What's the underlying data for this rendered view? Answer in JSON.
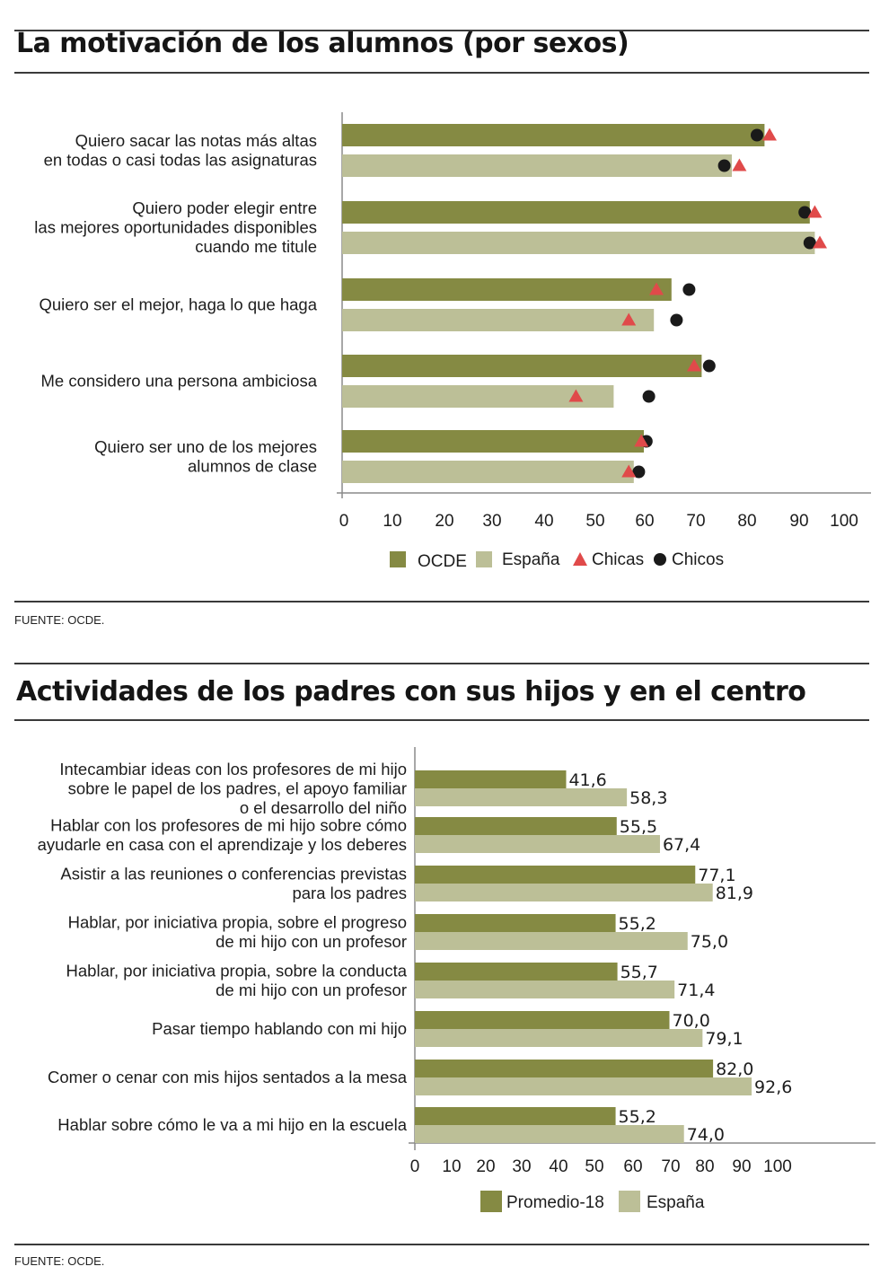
{
  "colors": {
    "primary_bar": "#858a43",
    "secondary_bar": "#bcbf97",
    "chicas": "#e04a4a",
    "chicos": "#1a1a1a",
    "axis": "#8a8a8a"
  },
  "sections": [
    {
      "title": "La motivación de los alumnos (por sexos)",
      "source": "FUENTE: OCDE."
    },
    {
      "title": "Actividades de los padres con sus hijos y en el centro",
      "source": "FUENTE: OCDE."
    }
  ],
  "chart_data": [
    {
      "type": "bar",
      "orientation": "horizontal",
      "title": "La motivación de los alumnos (por sexos)",
      "xlim": [
        0,
        100
      ],
      "xticks": [
        "0",
        "10",
        "20",
        "30",
        "40",
        "50",
        "60",
        "70",
        "80",
        "90",
        "100"
      ],
      "legend_position": "bottom",
      "legend": [
        {
          "label": "OCDE",
          "kind": "bar-dark"
        },
        {
          "label": "España",
          "kind": "bar-light"
        },
        {
          "label": "Chicas",
          "kind": "triangle"
        },
        {
          "label": "Chicos",
          "kind": "circle"
        }
      ],
      "categories": [
        [
          "Quiero sacar las notas  más altas",
          "en todas o casi todas las asignaturas"
        ],
        [
          "Quiero poder elegir entre",
          "las mejores oportunidades disponibles",
          "cuando me titule"
        ],
        [
          "Quiero ser el mejor, haga lo que haga"
        ],
        [
          "Me considero una persona ambiciosa"
        ],
        [
          "Quiero ser uno de los mejores",
          "alumnos de clase"
        ]
      ],
      "series": [
        {
          "name": "OCDE",
          "values": [
            84,
            93,
            65.5,
            71.5,
            60
          ],
          "chicas": [
            85,
            94,
            62.5,
            70,
            59.5
          ],
          "chicos": [
            82.5,
            92,
            69,
            73,
            60.5
          ]
        },
        {
          "name": "España",
          "values": [
            77.5,
            94,
            62,
            54,
            58
          ],
          "chicas": [
            79,
            95,
            57,
            46.5,
            57
          ],
          "chicos": [
            76,
            93,
            66.5,
            61,
            59
          ]
        }
      ]
    },
    {
      "type": "bar",
      "orientation": "horizontal",
      "title": "Actividades de los padres con sus hijos y en el centro",
      "xlim": [
        0,
        100
      ],
      "xticks": [
        "0",
        "10",
        "20",
        "30",
        "40",
        "50",
        "60",
        "70",
        "80",
        "90",
        "100"
      ],
      "legend_position": "bottom",
      "legend": [
        {
          "label": "Promedio-18",
          "kind": "bar-dark"
        },
        {
          "label": "España",
          "kind": "bar-light"
        }
      ],
      "categories": [
        [
          "Intecambiar ideas con los profesores de mi hijo",
          "sobre le papel de los padres, el apoyo familiar",
          "o el desarrollo del niño"
        ],
        [
          "Hablar con los profesores de mi hijo sobre cómo",
          "ayudarle en casa con el aprendizaje  y los deberes"
        ],
        [
          "Asistir a las reuniones o conferencias previstas",
          "para los padres"
        ],
        [
          "Hablar, por iniciativa propia, sobre el progreso",
          "de mi hijo con un profesor"
        ],
        [
          "Hablar, por iniciativa propia, sobre la conducta",
          "de mi hijo con un profesor"
        ],
        [
          "Pasar tiempo hablando con mi hijo"
        ],
        [
          "Comer o cenar con mis hijos sentados a la mesa"
        ],
        [
          "Hablar sobre cómo le va a mi hijo en la escuela"
        ]
      ],
      "series": [
        {
          "name": "Promedio-18",
          "values": [
            41.6,
            55.5,
            77.1,
            55.2,
            55.7,
            70.0,
            82.0,
            55.2
          ],
          "labels": [
            "41,6",
            "55,5",
            "77,1",
            "55,2",
            "55,7",
            "70,0",
            "82,0",
            "55,2"
          ]
        },
        {
          "name": "España",
          "values": [
            58.3,
            67.4,
            81.9,
            75.0,
            71.4,
            79.1,
            92.6,
            74.0
          ],
          "labels": [
            "58,3",
            "67,4",
            "81,9",
            "75,0",
            "71,4",
            "79,1",
            "92,6",
            "74,0"
          ]
        }
      ]
    }
  ]
}
